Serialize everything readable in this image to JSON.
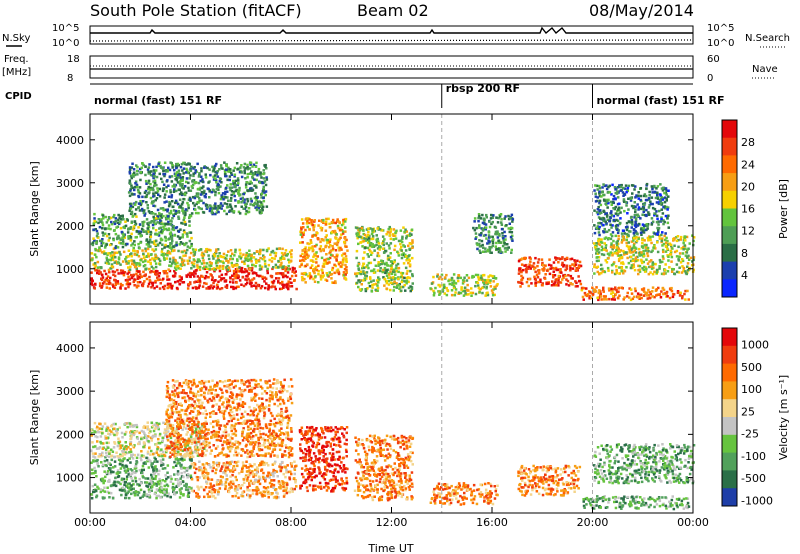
{
  "header": {
    "title": "South Pole Station (fitACF)",
    "beam": "Beam 02",
    "date": "08/May/2014"
  },
  "summary": {
    "nsky_label": "N.Sky",
    "nsearch_label": "N.Search",
    "nsky_ticks": [
      "10^5",
      "10^0"
    ],
    "freq_label_1": "Freq.",
    "freq_label_2": "[MHz]",
    "freq_ticks": [
      "18",
      "8"
    ],
    "nave_label": "Nave",
    "nave_ticks": [
      "60",
      "0"
    ],
    "cpid_label": "CPID",
    "modes": [
      {
        "label": "normal (fast) 151 RF",
        "start_hour": 0,
        "end_hour": 14
      },
      {
        "label": "rbsp 200 RF",
        "start_hour": 14,
        "end_hour": 20
      },
      {
        "label": "normal (fast) 151 RF",
        "start_hour": 20,
        "end_hour": 24
      }
    ]
  },
  "chart_data": [
    {
      "type": "heatmap",
      "title": "",
      "xlabel": "Time UT",
      "ylabel": "Slant Range [km]",
      "xlim": [
        0,
        24
      ],
      "ylim": [
        180,
        4600
      ],
      "x_ticks": [
        "00:00",
        "04:00",
        "08:00",
        "12:00",
        "16:00",
        "20:00",
        "00:00"
      ],
      "y_ticks": [
        1000,
        2000,
        3000,
        4000
      ],
      "colorbar": {
        "label": "Power [dB]",
        "range": [
          0,
          32
        ],
        "ticks": [
          "4",
          "8",
          "12",
          "16",
          "20",
          "24",
          "28"
        ],
        "colors": [
          "#0a26ff",
          "#1b3fae",
          "#2a6e46",
          "#4e9e55",
          "#62c43d",
          "#f6d000",
          "#f79e14",
          "#ff6a00",
          "#f03c0e",
          "#e4070a"
        ]
      },
      "regions": [
        {
          "t0": 0.0,
          "t1": 4.5,
          "r0": 550,
          "r1": 1000,
          "level": 0.9
        },
        {
          "t0": 4.5,
          "t1": 8.2,
          "r0": 550,
          "r1": 1050,
          "level": 0.92
        },
        {
          "t0": 0.0,
          "t1": 8.0,
          "r0": 1000,
          "r1": 1500,
          "level": 0.5
        },
        {
          "t0": 0.0,
          "t1": 4.0,
          "r0": 1500,
          "r1": 2300,
          "level": 0.35
        },
        {
          "t0": 1.5,
          "t1": 7.0,
          "r0": 2300,
          "r1": 3500,
          "level": 0.3
        },
        {
          "t0": 8.3,
          "t1": 10.2,
          "r0": 700,
          "r1": 2200,
          "level": 0.65
        },
        {
          "t0": 10.5,
          "t1": 12.8,
          "r0": 500,
          "r1": 2000,
          "level": 0.45
        },
        {
          "t0": 13.5,
          "t1": 16.2,
          "r0": 400,
          "r1": 900,
          "level": 0.5
        },
        {
          "t0": 15.2,
          "t1": 16.8,
          "r0": 1400,
          "r1": 2300,
          "level": 0.3
        },
        {
          "t0": 17.0,
          "t1": 19.5,
          "r0": 600,
          "r1": 1300,
          "level": 0.85
        },
        {
          "t0": 19.5,
          "t1": 23.8,
          "r0": 300,
          "r1": 600,
          "level": 0.75
        },
        {
          "t0": 20.0,
          "t1": 24.0,
          "r0": 900,
          "r1": 1800,
          "level": 0.5
        },
        {
          "t0": 20.0,
          "t1": 23.0,
          "r0": 1800,
          "r1": 3000,
          "level": 0.25
        }
      ]
    },
    {
      "type": "heatmap",
      "title": "",
      "xlabel": "Time UT",
      "ylabel": "Slant Range [km]",
      "xlim": [
        0,
        24
      ],
      "ylim": [
        180,
        4600
      ],
      "x_ticks": [
        "00:00",
        "04:00",
        "08:00",
        "12:00",
        "16:00",
        "20:00",
        "00:00"
      ],
      "y_ticks": [
        1000,
        2000,
        3000,
        4000
      ],
      "colorbar": {
        "label": "Velocity [m s⁻¹]",
        "range": [
          -1200,
          1200
        ],
        "ticks": [
          "1000",
          "500",
          "100",
          "25",
          "-25",
          "-100",
          "-500",
          "-1000"
        ],
        "colors": [
          "#1e3ea8",
          "#2a6f48",
          "#51a15b",
          "#66c43f",
          "#c4c4c4",
          "#f4d48a",
          "#f79e14",
          "#ff6a00",
          "#f03c0e",
          "#e4070a"
        ]
      },
      "regions": [
        {
          "t0": 0.0,
          "t1": 4.0,
          "r0": 550,
          "r1": 1500,
          "level": 0.3
        },
        {
          "t0": 4.0,
          "t1": 8.2,
          "r0": 550,
          "r1": 1400,
          "level": 0.65
        },
        {
          "t0": 0.0,
          "t1": 4.5,
          "r0": 1500,
          "r1": 2300,
          "level": 0.48
        },
        {
          "t0": 3.0,
          "t1": 8.0,
          "r0": 1500,
          "r1": 3300,
          "level": 0.7
        },
        {
          "t0": 8.3,
          "t1": 10.2,
          "r0": 700,
          "r1": 2200,
          "level": 0.88
        },
        {
          "t0": 10.5,
          "t1": 12.8,
          "r0": 500,
          "r1": 2000,
          "level": 0.72
        },
        {
          "t0": 13.5,
          "t1": 16.2,
          "r0": 400,
          "r1": 900,
          "level": 0.72
        },
        {
          "t0": 17.0,
          "t1": 19.5,
          "r0": 600,
          "r1": 1300,
          "level": 0.7
        },
        {
          "t0": 19.5,
          "t1": 23.8,
          "r0": 300,
          "r1": 600,
          "level": 0.3
        },
        {
          "t0": 20.0,
          "t1": 24.0,
          "r0": 900,
          "r1": 1800,
          "level": 0.3
        }
      ]
    }
  ]
}
